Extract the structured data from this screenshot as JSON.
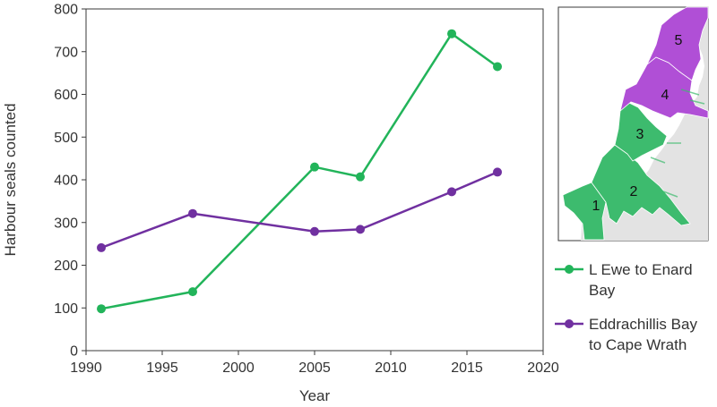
{
  "chart_data": {
    "type": "line",
    "title": "",
    "xlabel": "Year",
    "ylabel": "Harbour seals counted",
    "xlim": [
      1990,
      2020
    ],
    "ylim": [
      0,
      800
    ],
    "xticks": [
      1990,
      1995,
      2000,
      2005,
      2010,
      2015,
      2020
    ],
    "yticks": [
      0,
      100,
      200,
      300,
      400,
      500,
      600,
      700,
      800
    ],
    "grid": false,
    "legend_position": "bottom-right",
    "series": [
      {
        "name": "L Ewe to Enard Bay",
        "legend_lines": [
          "L Ewe to Enard",
          "Bay"
        ],
        "color": "#22b45a",
        "x": [
          1991,
          1997,
          2005,
          2008,
          2014,
          2017
        ],
        "y": [
          98,
          138,
          430,
          407,
          742,
          665
        ]
      },
      {
        "name": "Eddrachillis Bay to Cape Wrath",
        "legend_lines": [
          "Eddrachillis Bay",
          "to Cape Wrath"
        ],
        "color": "#7030a0",
        "x": [
          1991,
          1997,
          2005,
          2008,
          2014,
          2017
        ],
        "y": [
          241,
          321,
          279,
          284,
          372,
          418
        ]
      }
    ]
  },
  "map": {
    "regions": [
      {
        "label": "1",
        "group": "L Ewe to Enard Bay",
        "color": "#3dbb6e"
      },
      {
        "label": "2",
        "group": "L Ewe to Enard Bay",
        "color": "#3dbb6e"
      },
      {
        "label": "3",
        "group": "L Ewe to Enard Bay",
        "color": "#3dbb6e"
      },
      {
        "label": "4",
        "group": "Eddrachillis Bay to Cape Wrath",
        "color": "#b04fd6"
      },
      {
        "label": "5",
        "group": "Eddrachillis Bay to Cape Wrath",
        "color": "#b04fd6"
      }
    ],
    "land_color": "#e3e3e3"
  }
}
